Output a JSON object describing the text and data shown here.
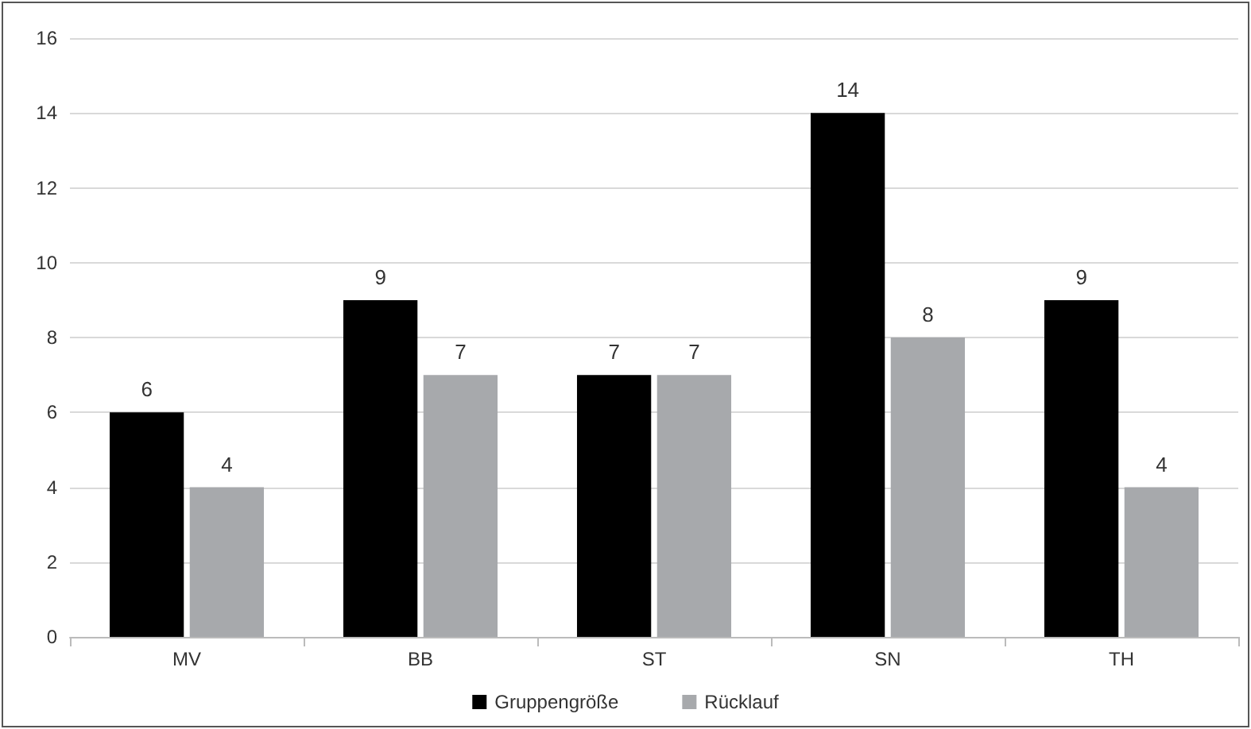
{
  "chart_data": {
    "type": "bar",
    "categories": [
      "MV",
      "BB",
      "ST",
      "SN",
      "TH"
    ],
    "series": [
      {
        "name": "Gruppengröße",
        "color": "#000000",
        "values": [
          6,
          9,
          7,
          14,
          9
        ]
      },
      {
        "name": "Rücklauf",
        "color": "#a7a9ac",
        "values": [
          4,
          7,
          7,
          8,
          4
        ]
      }
    ],
    "ylim": [
      0,
      16
    ],
    "yticks": [
      0,
      2,
      4,
      6,
      8,
      10,
      12,
      14,
      16
    ],
    "grid": "y",
    "legend": "bottom",
    "data_labels": true
  }
}
